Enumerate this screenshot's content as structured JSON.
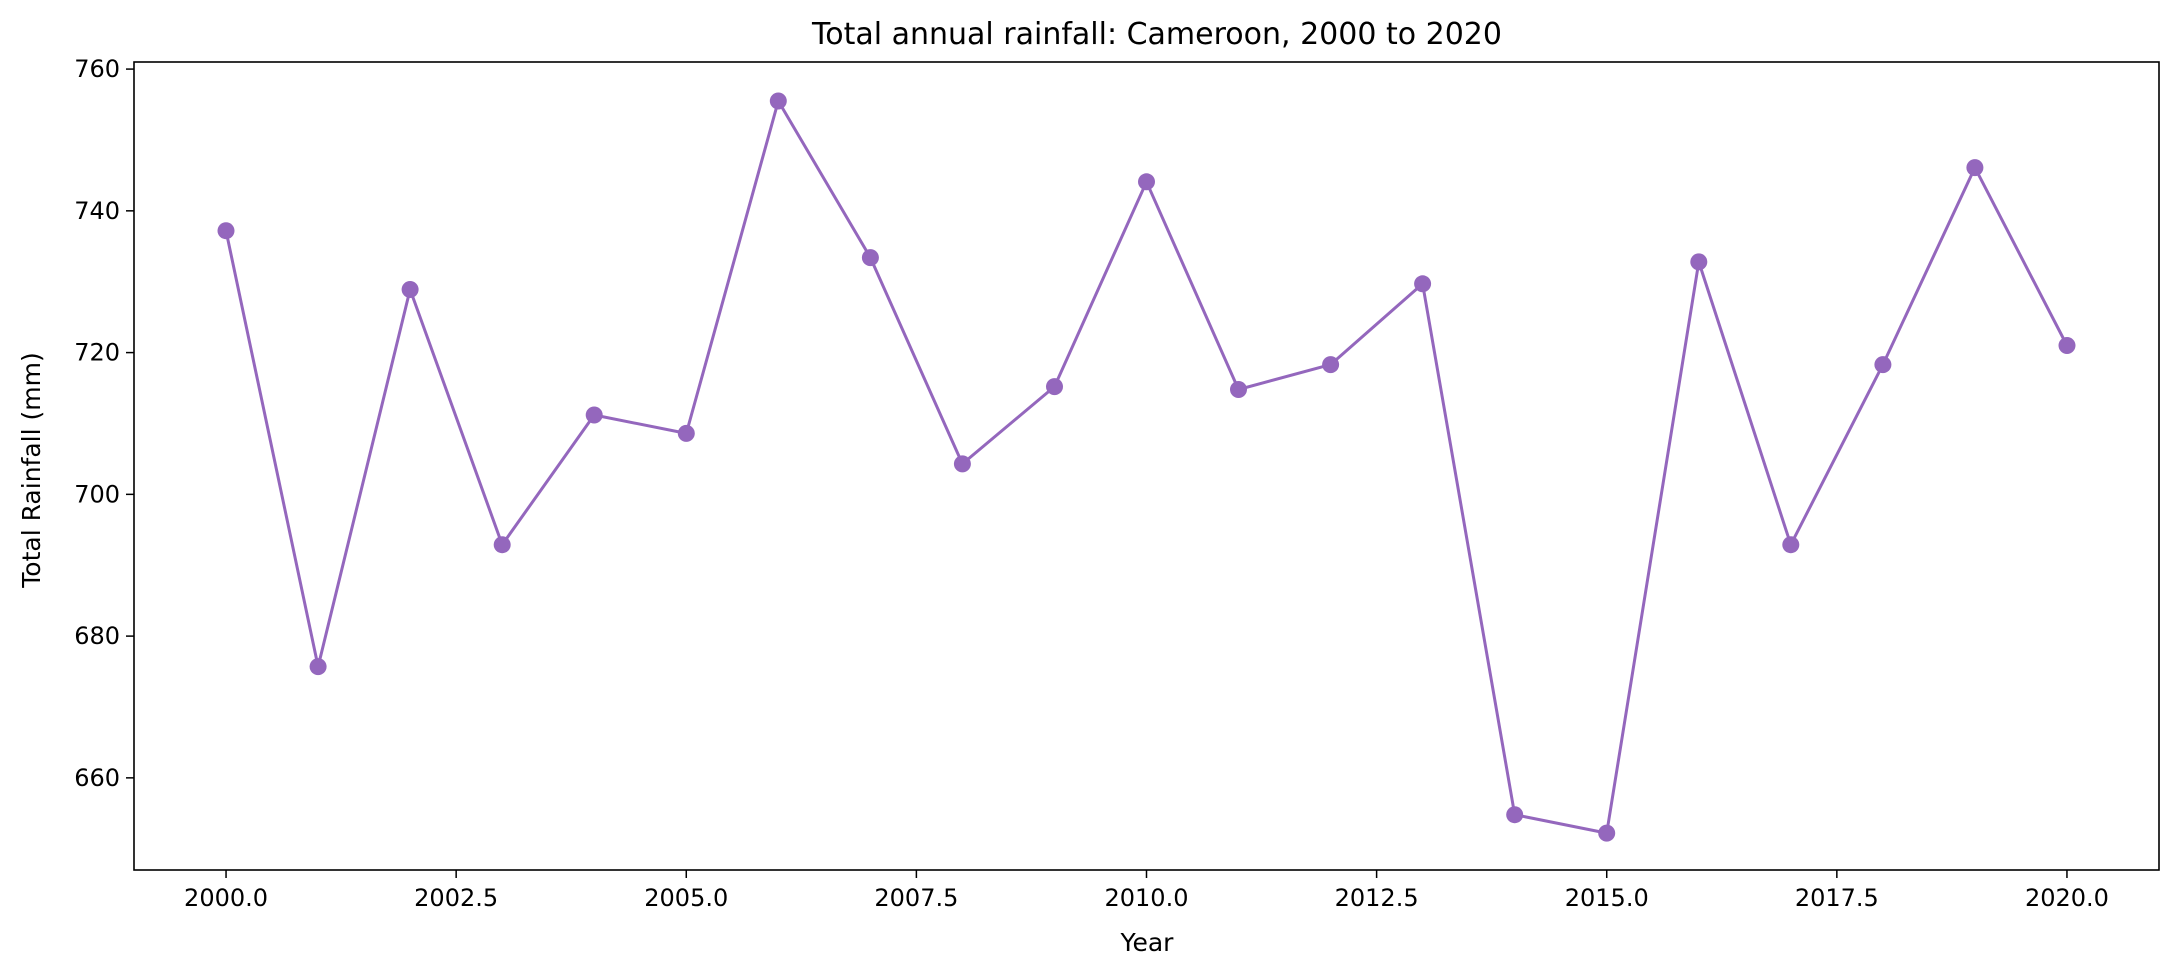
{
  "chart_data": {
    "type": "line",
    "title": "Total annual rainfall: Cameroon, 2000 to 2020",
    "xlabel": "Year",
    "ylabel": "Total Rainfall (mm)",
    "xlim": [
      1999.0,
      2021.0
    ],
    "ylim": [
      647,
      761
    ],
    "x_ticks": [
      2000.0,
      2002.5,
      2005.0,
      2007.5,
      2010.0,
      2012.5,
      2015.0,
      2017.5,
      2020.0
    ],
    "x_tick_labels": [
      "2000.0",
      "2002.5",
      "2005.0",
      "2007.5",
      "2010.0",
      "2012.5",
      "2015.0",
      "2017.5",
      "2020.0"
    ],
    "y_ticks": [
      660,
      680,
      700,
      720,
      740,
      760
    ],
    "y_tick_labels": [
      "660",
      "680",
      "700",
      "720",
      "740",
      "760"
    ],
    "grid": false,
    "legend": "none",
    "series": [
      {
        "color": "#9467bd",
        "marker": "circle",
        "x": [
          2000,
          2001,
          2002,
          2003,
          2004,
          2005,
          2006,
          2007,
          2008,
          2009,
          2010,
          2011,
          2012,
          2013,
          2014,
          2015,
          2016,
          2017,
          2018,
          2019,
          2020
        ],
        "y": [
          737.2,
          675.7,
          728.9,
          692.9,
          711.2,
          708.6,
          755.5,
          733.4,
          704.3,
          715.2,
          744.1,
          714.8,
          718.3,
          729.7,
          654.8,
          652.2,
          732.8,
          692.9,
          718.3,
          746.1,
          721.0
        ]
      }
    ]
  }
}
